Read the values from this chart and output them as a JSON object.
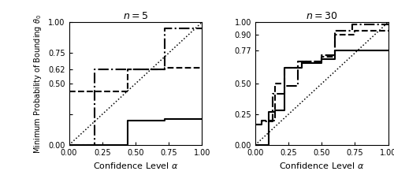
{
  "left_title": "$n = 5$",
  "right_title": "$n = 30$",
  "ylabel": "Minimum Probability of Bounding $\\theta_0$",
  "xlabel": "Confidence Level $\\alpha$",
  "xlim": [
    0.0,
    1.0
  ],
  "ylim": [
    0.0,
    1.0
  ],
  "left_solid_x": [
    0.0,
    0.44,
    0.44,
    0.72,
    0.72,
    1.0
  ],
  "left_solid_y": [
    0.0,
    0.0,
    0.2,
    0.2,
    0.21,
    0.21
  ],
  "left_dashed_x": [
    0.0,
    0.44,
    0.44,
    0.72,
    0.72,
    1.0
  ],
  "left_dashed_y": [
    0.44,
    0.44,
    0.62,
    0.62,
    0.63,
    0.63
  ],
  "left_dashdot_x": [
    0.0,
    0.19,
    0.19,
    0.44,
    0.44,
    0.72,
    0.72,
    1.0
  ],
  "left_dashdot_y": [
    0.0,
    0.0,
    0.62,
    0.62,
    0.62,
    0.62,
    0.95,
    0.95
  ],
  "right_solid_x": [
    0.0,
    0.1,
    0.1,
    0.15,
    0.15,
    0.22,
    0.22,
    0.35,
    0.35,
    0.5,
    0.5,
    0.6,
    0.6,
    0.73,
    0.73,
    1.0
  ],
  "right_solid_y": [
    0.0,
    0.0,
    0.27,
    0.27,
    0.28,
    0.28,
    0.63,
    0.63,
    0.67,
    0.67,
    0.7,
    0.7,
    0.77,
    0.77,
    0.77,
    0.77
  ],
  "right_dashed_x": [
    0.0,
    0.05,
    0.05,
    0.15,
    0.15,
    0.22,
    0.22,
    0.35,
    0.35,
    0.5,
    0.5,
    0.6,
    0.6,
    0.75,
    0.75,
    1.0
  ],
  "right_dashed_y": [
    0.17,
    0.17,
    0.2,
    0.2,
    0.5,
    0.5,
    0.63,
    0.63,
    0.68,
    0.68,
    0.72,
    0.72,
    0.9,
    0.9,
    0.93,
    0.93
  ],
  "right_dashdot_x": [
    0.0,
    0.05,
    0.05,
    0.13,
    0.13,
    0.22,
    0.22,
    0.32,
    0.32,
    0.5,
    0.5,
    0.6,
    0.6,
    0.73,
    0.73,
    1.0
  ],
  "right_dashdot_y": [
    0.17,
    0.17,
    0.19,
    0.19,
    0.42,
    0.42,
    0.48,
    0.48,
    0.68,
    0.68,
    0.73,
    0.73,
    0.93,
    0.93,
    0.98,
    0.98
  ],
  "left_yticks": [
    0.0,
    0.25,
    0.5,
    0.62,
    0.75,
    1.0
  ],
  "left_ytick_labels": [
    "0.00",
    "",
    "0.50",
    "0.62",
    "0.75",
    "1.00"
  ],
  "right_yticks": [
    0.0,
    0.25,
    0.5,
    0.77,
    0.9,
    1.0
  ],
  "right_ytick_labels": [
    "0.00",
    "0.25",
    "0.50",
    "0.77",
    "0.90",
    "1.00"
  ],
  "xticks": [
    0.0,
    0.25,
    0.5,
    0.75,
    1.0
  ],
  "xtick_labels": [
    "0.00",
    "0.25",
    "0.50",
    "0.75",
    "1.00"
  ],
  "line_color": "black",
  "lw": 1.5,
  "diag_lw": 1.1
}
